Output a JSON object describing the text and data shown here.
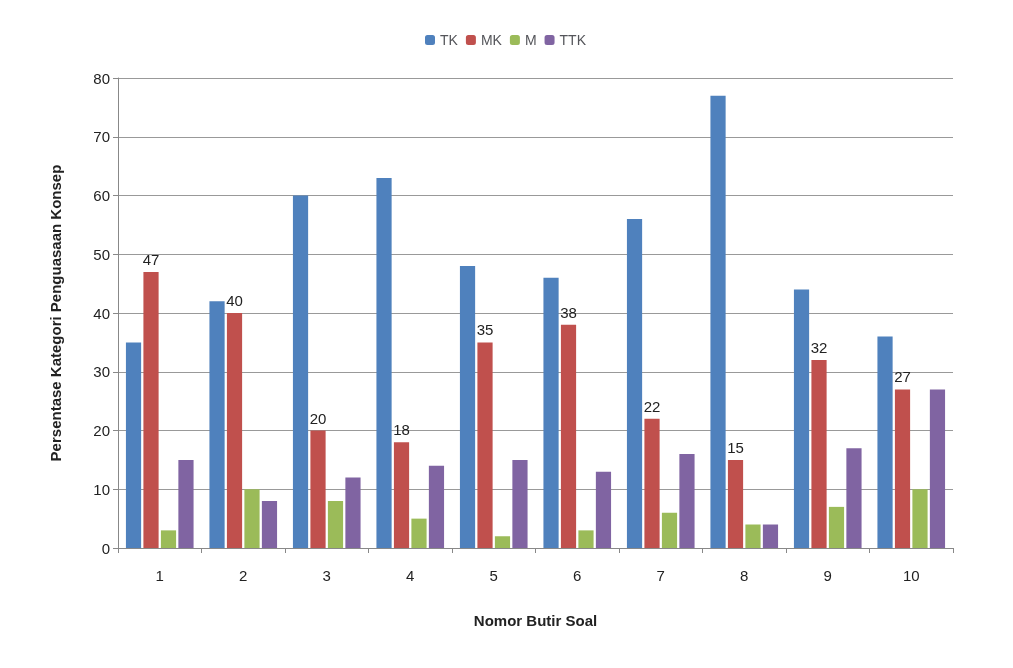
{
  "chart_data": {
    "type": "bar",
    "xlabel": "Nomor Butir Soal",
    "ylabel": "Persentase Kategori Penguasaan Konsep",
    "categories": [
      "1",
      "2",
      "3",
      "4",
      "5",
      "6",
      "7",
      "8",
      "9",
      "10"
    ],
    "series": [
      {
        "name": "TK",
        "color": "#4f81bd",
        "values": [
          35,
          42,
          60,
          63,
          48,
          46,
          56,
          77,
          44,
          36
        ]
      },
      {
        "name": "MK",
        "color": "#c0504d",
        "values": [
          47,
          40,
          20,
          18,
          35,
          38,
          22,
          15,
          32,
          27
        ],
        "value_labels": [
          "47",
          "40",
          "20",
          "18",
          "35",
          "38",
          "22",
          "15",
          "32",
          "27"
        ]
      },
      {
        "name": "M",
        "color": "#9bbb59",
        "values": [
          3,
          10,
          8,
          5,
          2,
          3,
          6,
          4,
          7,
          10
        ]
      },
      {
        "name": "TTK",
        "color": "#8064a2",
        "values": [
          15,
          8,
          12,
          14,
          15,
          13,
          16,
          4,
          17,
          27
        ]
      }
    ],
    "ylim": [
      0,
      80
    ],
    "yticks": [
      0,
      10,
      20,
      30,
      40,
      50,
      60,
      70,
      80
    ],
    "grid": "y",
    "legend": "top"
  }
}
